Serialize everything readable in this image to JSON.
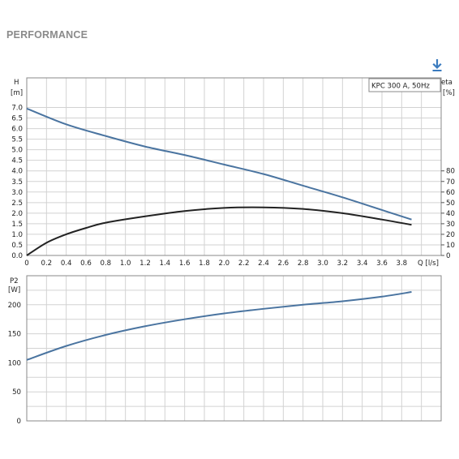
{
  "page": {
    "title": "PERFORMANCE",
    "download_icon": "download-icon"
  },
  "chart_data": [
    {
      "type": "line",
      "legend": "KPC 300 A, 50Hz",
      "legend_placement": "top-right",
      "grid": true,
      "xlabel": "Q [l/s]",
      "x_ticks": [
        0,
        0.2,
        0.4,
        0.6,
        0.8,
        1.0,
        1.2,
        1.4,
        1.6,
        1.8,
        2.0,
        2.2,
        2.4,
        2.6,
        2.8,
        3.0,
        3.2,
        3.4,
        3.6,
        3.8
      ],
      "x_tick_labels": [
        "0",
        "0.2",
        "0.4",
        "0.6",
        "0.8",
        "1.0",
        "1.2",
        "1.4",
        "1.6",
        "1.8",
        "2.0",
        "2.2",
        "2.4",
        "2.6",
        "2.8",
        "3.0",
        "3.2",
        "3.4",
        "3.6",
        "3.8"
      ],
      "xlim": [
        0,
        4.2
      ],
      "y_left": {
        "label_top": "H",
        "label_unit": "[m]",
        "ticks": [
          0,
          0.5,
          1.0,
          1.5,
          2.0,
          2.5,
          3.0,
          3.5,
          4.0,
          4.5,
          5.0,
          5.5,
          6.0,
          6.5,
          7.0
        ],
        "tick_labels": [
          "0.0",
          "0.5",
          "1.0",
          "1.5",
          "2.0",
          "2.5",
          "3.0",
          "3.5",
          "4.0",
          "4.5",
          "5.0",
          "5.5",
          "6.0",
          "6.5",
          "7.0"
        ],
        "ylim": [
          0,
          8.4
        ]
      },
      "y_right": {
        "label_top": "eta",
        "label_unit": "[%]",
        "ticks": [
          0,
          10,
          20,
          30,
          40,
          50,
          60,
          70,
          80
        ],
        "tick_labels": [
          "0",
          "10",
          "20",
          "30",
          "40",
          "50",
          "60",
          "70",
          "80"
        ],
        "ylim": [
          0,
          168
        ]
      },
      "series": [
        {
          "axis": "left",
          "color": "#4a74a0",
          "x": [
            0,
            0.4,
            0.8,
            1.2,
            1.6,
            2.0,
            2.4,
            2.8,
            3.2,
            3.6,
            3.9
          ],
          "y": [
            6.95,
            6.2,
            5.65,
            5.15,
            4.75,
            4.3,
            3.85,
            3.3,
            2.75,
            2.15,
            1.7
          ]
        },
        {
          "axis": "right",
          "color": "#222222",
          "x": [
            0,
            0.2,
            0.4,
            0.6,
            0.8,
            1.2,
            1.6,
            2.0,
            2.4,
            2.8,
            3.2,
            3.6,
            3.9
          ],
          "y": [
            0,
            12,
            20,
            26,
            31,
            37,
            42,
            45,
            45.5,
            44,
            40,
            34,
            29
          ]
        }
      ]
    },
    {
      "type": "line",
      "grid": true,
      "xlim": [
        0,
        4.2
      ],
      "y_left": {
        "label_top": "P2",
        "label_unit": "[W]",
        "ticks": [
          0,
          50,
          100,
          150,
          200
        ],
        "tick_labels": [
          "0",
          "50",
          "100",
          "150",
          "200"
        ],
        "ylim": [
          0,
          250
        ]
      },
      "series": [
        {
          "axis": "left",
          "color": "#4a74a0",
          "x": [
            0,
            0.4,
            0.8,
            1.2,
            1.6,
            2.0,
            2.4,
            2.8,
            3.2,
            3.6,
            3.9
          ],
          "y": [
            105,
            129,
            148,
            163,
            175,
            185,
            193,
            200,
            206,
            214,
            222
          ]
        }
      ]
    }
  ]
}
